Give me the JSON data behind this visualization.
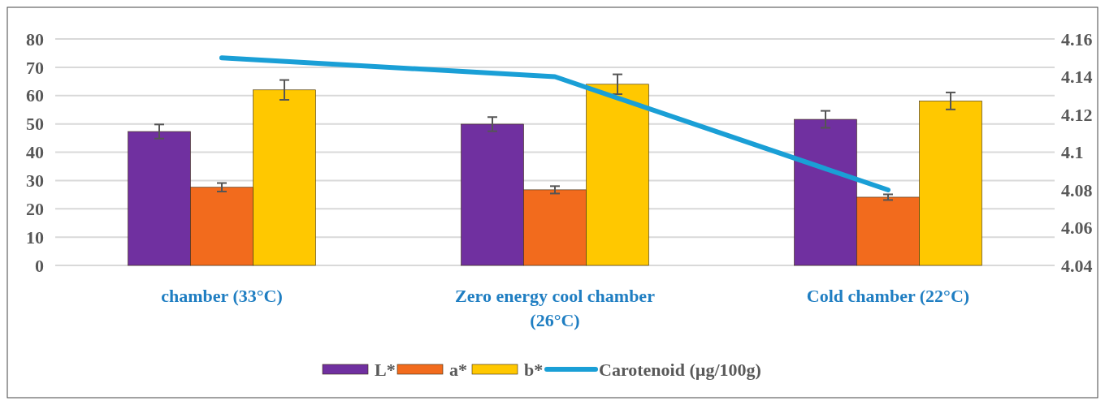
{
  "chart_data": {
    "type": "bar",
    "categories": [
      "chamber (33°C)",
      "Zero energy cool chamber (26°C)",
      "Cold chamber (22°C)"
    ],
    "series": [
      {
        "name": "L*",
        "color": "#7030a0",
        "values": [
          47.3,
          49.9,
          51.6
        ],
        "errors": [
          2.5,
          2.5,
          3
        ]
      },
      {
        "name": "a*",
        "color": "#f26b1d",
        "values": [
          27.6,
          26.7,
          24.1
        ],
        "errors": [
          1.5,
          1.3,
          1
        ]
      },
      {
        "name": "b*",
        "color": "#ffc800",
        "values": [
          62,
          64,
          58.1
        ],
        "errors": [
          3.5,
          3.5,
          3
        ]
      },
      {
        "name": "Carotenoid (µg/100g)",
        "type": "line",
        "axis": "y2",
        "color": "#1a9fd6",
        "values": [
          4.15,
          4.14,
          4.08
        ]
      }
    ],
    "ylim": [
      0,
      80
    ],
    "yticks": [
      0,
      10,
      20,
      30,
      40,
      50,
      60,
      70,
      80
    ],
    "y2lim": [
      4.04,
      4.16
    ],
    "y2ticks": [
      {
        "value": 4.04,
        "label": "4.04"
      },
      {
        "value": 4.06,
        "label": "4.06"
      },
      {
        "value": 4.08,
        "label": "4.08"
      },
      {
        "value": 4.1,
        "label": "4.1"
      },
      {
        "value": 4.12,
        "label": "4.12"
      },
      {
        "value": 4.14,
        "label": "4.14"
      },
      {
        "value": 4.16,
        "label": "4.16"
      }
    ],
    "grid": "y",
    "legend": "bottom"
  }
}
